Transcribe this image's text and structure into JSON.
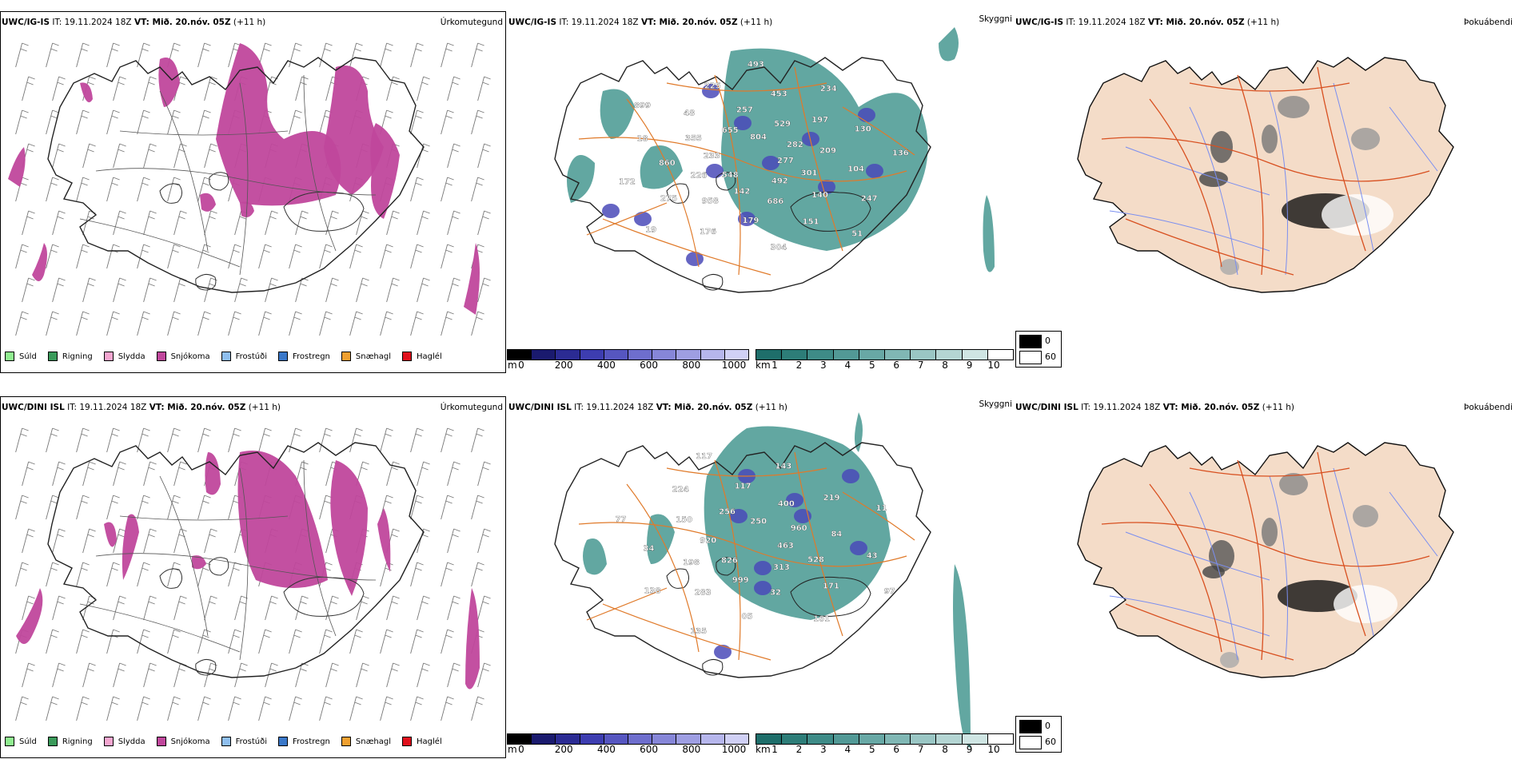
{
  "rows": [
    {
      "id": "top",
      "precip": {
        "model": "UWC/IG-IS",
        "it": "IT: 19.11.2024 18Z",
        "vt": "VT: Mið. 20.nóv. 05Z",
        "lead": "(+11 h)",
        "title": "Úrkomutegund"
      },
      "vis": {
        "model": "UWC/IG-IS",
        "it": "IT: 19.11.2024 18Z",
        "vt": "VT: Mið. 20.nóv. 05Z",
        "lead": "(+11 h)",
        "title": "Skyggni",
        "labels": [
          "277",
          "548",
          "804",
          "492",
          "233",
          "282",
          "142",
          "655",
          "301",
          "226",
          "529",
          "686",
          "355",
          "209",
          "958",
          "257",
          "140",
          "860",
          "197",
          "179",
          "48",
          "104",
          "275",
          "453",
          "151",
          "18",
          "130",
          "176",
          "225",
          "247",
          "172",
          "234",
          "304",
          "899",
          "136",
          "19",
          "493",
          "51"
        ]
      },
      "fog": {
        "model": "UWC/IG-IS",
        "it": "IT: 19.11.2024 18Z",
        "vt": "VT: Mið. 20.nóv. 05Z",
        "lead": "(+11 h)",
        "title": "Þokuábendi"
      }
    },
    {
      "id": "bottom",
      "precip": {
        "model": "UWC/DINI ISL",
        "it": "IT: 19.11.2024 18Z",
        "vt": "VT: Mið. 20.nóv. 05Z",
        "lead": "(+11 h)",
        "title": "Úrkomutegund"
      },
      "vis": {
        "model": "UWC/DINI ISL",
        "it": "IT: 19.11.2024 18Z",
        "vt": "VT: Mið. 20.nóv. 05Z",
        "lead": "(+11 h)",
        "title": "Skyggni",
        "labels": [
          "463",
          "826",
          "250",
          "313",
          "920",
          "960",
          "999",
          "256",
          "528",
          "198",
          "400",
          "32",
          "150",
          "84",
          "283",
          "117",
          "171",
          "34",
          "219",
          "05",
          "224",
          "43",
          "138",
          "143",
          "161",
          "77",
          "11",
          "135",
          "117",
          "97"
        ]
      },
      "fog": {
        "model": "UWC/DINI ISL",
        "it": "IT: 19.11.2024 18Z",
        "vt": "VT: Mið. 20.nóv. 05Z",
        "lead": "(+11 h)",
        "title": "Þokuábendi"
      }
    }
  ],
  "precip_legend": [
    {
      "label": "Súld",
      "color": "#90ee90"
    },
    {
      "label": "Rigning",
      "color": "#3a9a5a"
    },
    {
      "label": "Slydda",
      "color": "#f4a6d0"
    },
    {
      "label": "Snjókoma",
      "color": "#c0479c"
    },
    {
      "label": "Frostúði",
      "color": "#8fbfef"
    },
    {
      "label": "Frostregn",
      "color": "#3a78c9"
    },
    {
      "label": "Snæhagl",
      "color": "#f0a030"
    },
    {
      "label": "Haglél",
      "color": "#e0101c"
    }
  ],
  "height_bar": {
    "unit": "m",
    "ticks": [
      "0",
      "200",
      "400",
      "600",
      "800",
      "1000"
    ],
    "colors": [
      "#000000",
      "#1a1a6e",
      "#2b2b93",
      "#3d3db0",
      "#5656c0",
      "#6e6ecd",
      "#8686d8",
      "#9e9ee2",
      "#b6b6ec",
      "#d0d0f5"
    ]
  },
  "vis_bar": {
    "unit": "km",
    "ticks": [
      "1",
      "2",
      "3",
      "4",
      "5",
      "6",
      "7",
      "8",
      "9",
      "10"
    ],
    "colors": [
      "#1e6e6a",
      "#2d7d78",
      "#3e8b87",
      "#529996",
      "#68a8a5",
      "#80b7b4",
      "#9ac6c4",
      "#b4d5d3",
      "#cfe5e3",
      "#ffffff"
    ]
  },
  "fog_legend": {
    "items": [
      {
        "label": "0",
        "color": "#000000"
      },
      {
        "label": "60",
        "color": "#ffffff"
      }
    ]
  },
  "colors": {
    "snow": "#c0479c",
    "vis_fill": "#2e8a82",
    "vis_deep": "#4a4ab8",
    "roads": "#e07a2a",
    "fog_land": "#f4dcc8",
    "fog_roads": "#d85020",
    "fog_rivers": "#7a8ef0"
  }
}
